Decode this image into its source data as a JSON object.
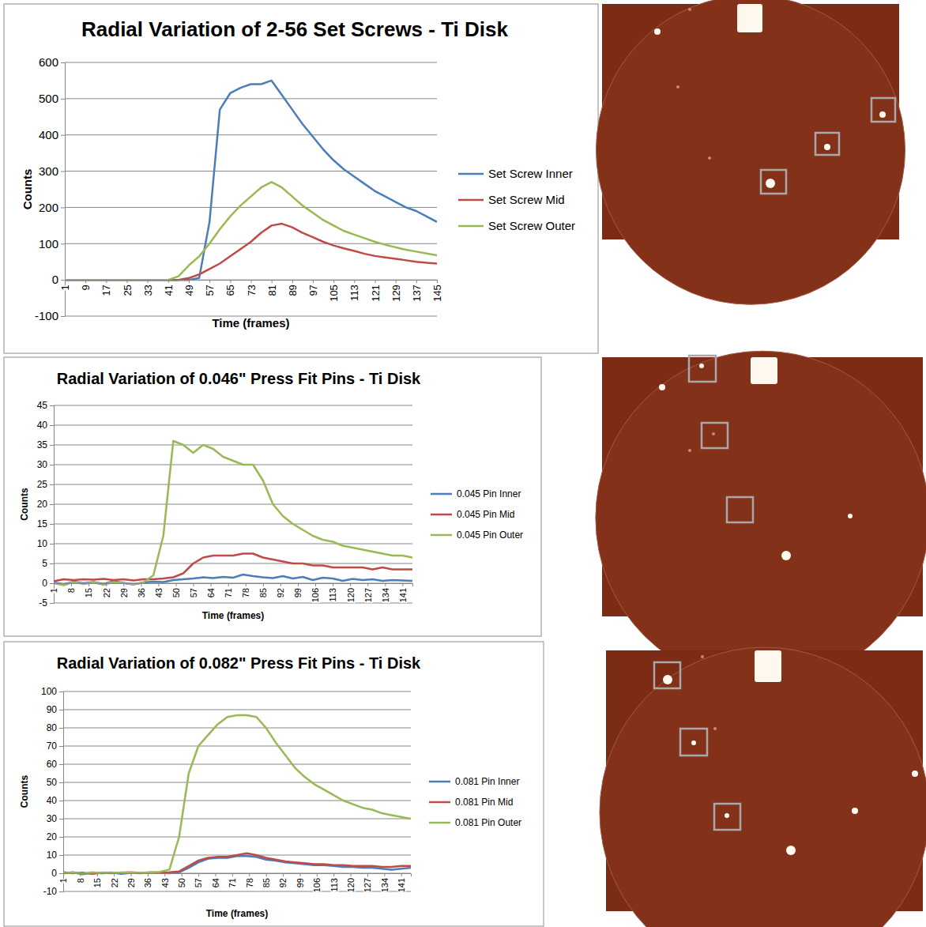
{
  "chart_data": [
    {
      "type": "line",
      "title": "Radial Variation of 2-56 Set Screws - Ti Disk",
      "x_label": "Time (frames)",
      "y_label": "Counts",
      "x": [
        1,
        5,
        9,
        13,
        17,
        21,
        25,
        29,
        33,
        37,
        41,
        45,
        49,
        53,
        57,
        61,
        65,
        69,
        73,
        77,
        81,
        85,
        89,
        93,
        97,
        101,
        105,
        109,
        113,
        117,
        121,
        125,
        129,
        133,
        137,
        141,
        145
      ],
      "xlim": [
        1,
        145
      ],
      "xticks": [
        1,
        9,
        17,
        25,
        33,
        41,
        49,
        57,
        65,
        73,
        81,
        89,
        97,
        105,
        113,
        121,
        129,
        137,
        145
      ],
      "ylim": [
        -100,
        600
      ],
      "yticks": [
        -100,
        0,
        100,
        200,
        300,
        400,
        500,
        600
      ],
      "grid": true,
      "legend": "right",
      "series": [
        {
          "name": "Set Screw Inner",
          "color": "#4a7ebb",
          "values": [
            0,
            0,
            0,
            0,
            0,
            0,
            0,
            0,
            0,
            0,
            0,
            0,
            0,
            5,
            160,
            470,
            515,
            530,
            540,
            540,
            550,
            510,
            470,
            430,
            395,
            360,
            330,
            305,
            285,
            265,
            245,
            230,
            215,
            200,
            190,
            175,
            160
          ]
        },
        {
          "name": "Set Screw Mid",
          "color": "#be4b48",
          "values": [
            0,
            0,
            0,
            0,
            0,
            0,
            0,
            0,
            0,
            0,
            0,
            0,
            5,
            15,
            30,
            45,
            65,
            85,
            105,
            130,
            150,
            155,
            145,
            130,
            118,
            105,
            95,
            87,
            80,
            72,
            66,
            62,
            58,
            54,
            50,
            47,
            45
          ]
        },
        {
          "name": "Set Screw Outer",
          "color": "#98b954",
          "values": [
            0,
            0,
            0,
            0,
            0,
            0,
            0,
            0,
            0,
            0,
            0,
            10,
            40,
            65,
            100,
            140,
            175,
            205,
            230,
            255,
            270,
            255,
            230,
            205,
            185,
            165,
            150,
            135,
            125,
            115,
            105,
            97,
            90,
            83,
            78,
            73,
            68
          ]
        }
      ]
    },
    {
      "type": "line",
      "title": "Radial Variation of 0.046\" Press Fit Pins - Ti Disk",
      "x_label": "Time (frames)",
      "y_label": "Counts",
      "x": [
        1,
        5,
        9,
        13,
        17,
        21,
        25,
        29,
        33,
        37,
        41,
        45,
        49,
        53,
        57,
        61,
        65,
        69,
        73,
        77,
        81,
        85,
        89,
        93,
        97,
        101,
        105,
        109,
        113,
        117,
        121,
        125,
        129,
        133,
        137,
        141,
        145
      ],
      "xlim": [
        1,
        145
      ],
      "xticks": [
        1,
        8,
        15,
        22,
        29,
        36,
        43,
        50,
        57,
        64,
        71,
        78,
        85,
        92,
        99,
        106,
        113,
        120,
        127,
        134,
        141
      ],
      "ylim": [
        -5,
        45
      ],
      "yticks": [
        -5,
        0,
        5,
        10,
        15,
        20,
        25,
        30,
        35,
        40,
        45
      ],
      "grid": true,
      "legend": "right",
      "series": [
        {
          "name": "0.045 Pin Inner",
          "color": "#4a7ebb",
          "values": [
            0.2,
            -0.3,
            0.4,
            0,
            0.3,
            -0.2,
            0.5,
            0.1,
            -0.3,
            0.2,
            0.4,
            0.3,
            0.8,
            1,
            1.2,
            1.5,
            1.3,
            1.6,
            1.4,
            2.2,
            1.8,
            1.5,
            1.3,
            1.8,
            1.2,
            1.6,
            0.8,
            1.4,
            1.2,
            0.6,
            1.1,
            0.8,
            1,
            0.6,
            0.8,
            0.7,
            0.6
          ]
        },
        {
          "name": "0.045 Pin Mid",
          "color": "#be4b48",
          "values": [
            0.5,
            1,
            0.8,
            1,
            0.9,
            1.1,
            0.8,
            1,
            0.7,
            1,
            1,
            1.2,
            1.5,
            2.5,
            5,
            6.5,
            7,
            7,
            7,
            7.5,
            7.5,
            6.5,
            6,
            5.5,
            5,
            5,
            4.5,
            4.5,
            4,
            4,
            4,
            4,
            3.5,
            4,
            3.5,
            3.5,
            3.5
          ]
        },
        {
          "name": "0.045 Pin Outer",
          "color": "#98b954",
          "values": [
            0,
            -0.5,
            0.3,
            -0.2,
            0.2,
            -0.4,
            0.3,
            0,
            -0.3,
            0.2,
            2,
            12,
            36,
            35,
            33,
            35,
            34,
            32,
            31,
            30,
            30,
            26,
            20,
            17,
            15,
            13.5,
            12,
            11,
            10.5,
            9.5,
            9,
            8.5,
            8,
            7.5,
            7,
            7,
            6.5
          ]
        }
      ]
    },
    {
      "type": "line",
      "title": "Radial Variation of 0.082\" Press Fit Pins - Ti Disk",
      "x_label": "Time (frames)",
      "y_label": "Counts",
      "x": [
        1,
        5,
        9,
        13,
        17,
        21,
        25,
        29,
        33,
        37,
        41,
        45,
        49,
        53,
        57,
        61,
        65,
        69,
        73,
        77,
        81,
        85,
        89,
        93,
        97,
        101,
        105,
        109,
        113,
        117,
        121,
        125,
        129,
        133,
        137,
        141,
        145
      ],
      "xlim": [
        1,
        145
      ],
      "xticks": [
        1,
        8,
        15,
        22,
        29,
        36,
        43,
        50,
        57,
        64,
        71,
        78,
        85,
        92,
        99,
        106,
        113,
        120,
        127,
        134,
        141
      ],
      "ylim": [
        -10,
        100
      ],
      "yticks": [
        -10,
        0,
        10,
        20,
        30,
        40,
        50,
        60,
        70,
        80,
        90,
        100
      ],
      "grid": true,
      "legend": "right",
      "series": [
        {
          "name": "0.081 Pin Inner",
          "color": "#4a7ebb",
          "values": [
            0,
            0.5,
            -0.5,
            0.3,
            0,
            0.4,
            -0.3,
            0.2,
            0,
            0.3,
            0.2,
            0,
            0.5,
            3,
            6,
            8,
            8.5,
            8.5,
            9.5,
            9.5,
            9,
            7.5,
            7,
            6,
            5.5,
            5,
            4.5,
            4.5,
            4,
            3.5,
            3.5,
            3,
            3,
            2.5,
            2,
            2.5,
            3
          ]
        },
        {
          "name": "0.081 Pin Mid",
          "color": "#be4b48",
          "values": [
            0.5,
            0,
            0.3,
            -0.3,
            0.2,
            0,
            0.3,
            0.5,
            0.2,
            0.4,
            0.3,
            0.5,
            1,
            4,
            7,
            8.5,
            9,
            9,
            10,
            11,
            10,
            8.5,
            7.5,
            6.5,
            6,
            5.5,
            5,
            5,
            4.5,
            4.5,
            4,
            4,
            4,
            3.5,
            3.5,
            4,
            4
          ]
        },
        {
          "name": "0.081 Pin Outer",
          "color": "#98b954",
          "values": [
            0,
            0.3,
            -0.2,
            0.5,
            0,
            0.2,
            0.4,
            0.3,
            0.2,
            0.5,
            0.8,
            2,
            20,
            55,
            70,
            76,
            82,
            86,
            87,
            87,
            86,
            80,
            72,
            65,
            58,
            53,
            49,
            46,
            43,
            40,
            38,
            36,
            35,
            33,
            32,
            31,
            30
          ]
        }
      ]
    }
  ]
}
